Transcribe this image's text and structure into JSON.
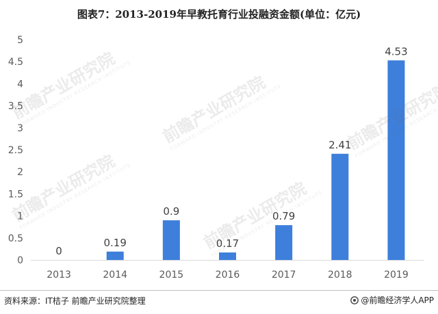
{
  "title": "图表7：2013-2019年早教托育行业投融资金额(单位：亿元)",
  "source": "资料来源：IT桔子 前瞻产业研究院整理",
  "brand": "@前瞻经济学人APP",
  "watermark": {
    "name": "前瞻产业研究院",
    "tagline": "FORWARD INDUSTRY RESEARCH INSTITUTE"
  },
  "colors": {
    "bar": "#3d7fdb",
    "axis_text": "#595959",
    "gridline": "#d9d9d9"
  },
  "chart_data": {
    "type": "bar",
    "title": "图表7：2013-2019年早教托育行业投融资金额(单位：亿元)",
    "categories": [
      "2013",
      "2014",
      "2015",
      "2016",
      "2017",
      "2018",
      "2019"
    ],
    "values": [
      0,
      0.19,
      0.9,
      0.17,
      0.79,
      2.41,
      4.53
    ],
    "data_labels": [
      "0",
      "0.19",
      "0.9",
      "0.17",
      "0.79",
      "2.41",
      "4.53"
    ],
    "yticks": [
      "0",
      "0.5",
      "1",
      "1.5",
      "2",
      "2.5",
      "3",
      "3.5",
      "4",
      "4.5",
      "5"
    ],
    "ylim": [
      0,
      5
    ],
    "grid": false,
    "legend": "none",
    "xlabel": "",
    "ylabel": ""
  }
}
